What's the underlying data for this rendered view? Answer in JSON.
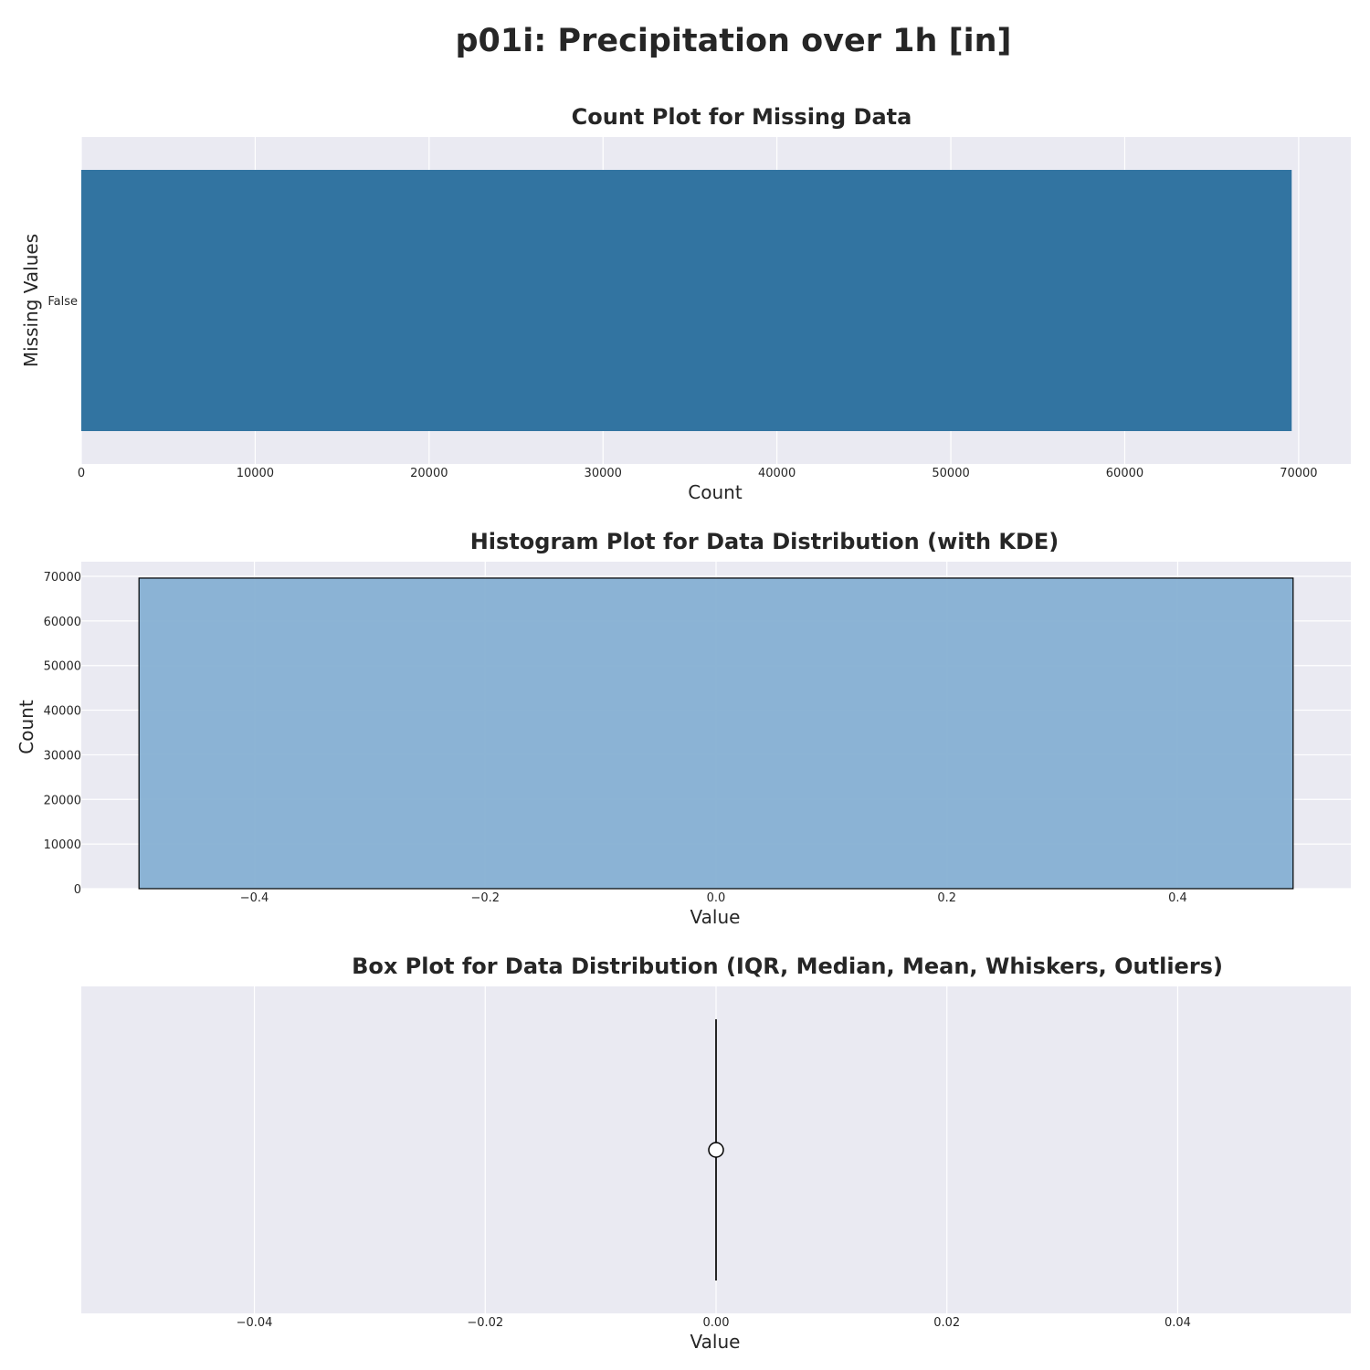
{
  "suptitle": "p01i: Precipitation over 1h [in]",
  "colors": {
    "panel_bg": "#eaeaf2",
    "grid": "#ffffff",
    "count_bar": "#3274a1",
    "hist_bar": "#86b0d3",
    "edge": "#000000",
    "box_line": "#262626",
    "mean_marker_fill": "#ffffff"
  },
  "chart_data": [
    {
      "type": "bar",
      "orientation": "horizontal",
      "title": "Count Plot for Missing Data",
      "xlabel": "Count",
      "ylabel": "Missing Values",
      "categories": [
        "False"
      ],
      "values": [
        69600
      ],
      "xlim": [
        0,
        73000
      ],
      "xticks": [
        0,
        10000,
        20000,
        30000,
        40000,
        50000,
        60000,
        70000
      ],
      "xtick_labels": [
        "0",
        "10000",
        "20000",
        "30000",
        "40000",
        "50000",
        "60000",
        "70000"
      ],
      "grid": true
    },
    {
      "type": "bar",
      "subtype": "histogram",
      "title": "Histogram Plot for Data Distribution (with KDE)",
      "xlabel": "Value",
      "ylabel": "Count",
      "bins": [
        {
          "x0": -0.5,
          "x1": 0.5,
          "count": 69600
        }
      ],
      "xlim": [
        -0.55,
        0.55
      ],
      "ylim": [
        0,
        70000
      ],
      "xticks": [
        -0.4,
        -0.2,
        0.0,
        0.2,
        0.4
      ],
      "xtick_labels": [
        "−0.4",
        "−0.2",
        "0.0",
        "0.2",
        "0.4"
      ],
      "yticks": [
        0,
        10000,
        20000,
        30000,
        40000,
        50000,
        60000,
        70000
      ],
      "ytick_labels": [
        "0",
        "10000",
        "20000",
        "30000",
        "40000",
        "50000",
        "60000",
        "70000"
      ],
      "grid": true
    },
    {
      "type": "box",
      "title": "Box Plot for Data Distribution (IQR, Median, Mean, Whiskers, Outliers)",
      "xlabel": "Value",
      "ylabel": "",
      "stats": {
        "min": 0.0,
        "q1": 0.0,
        "median": 0.0,
        "q3": 0.0,
        "max": 0.0,
        "mean": 0.0
      },
      "xlim": [
        -0.055,
        0.055
      ],
      "xticks": [
        -0.04,
        -0.02,
        0.0,
        0.02,
        0.04
      ],
      "xtick_labels": [
        "−0.04",
        "−0.02",
        "0.00",
        "0.02",
        "0.04"
      ],
      "grid": true
    }
  ]
}
